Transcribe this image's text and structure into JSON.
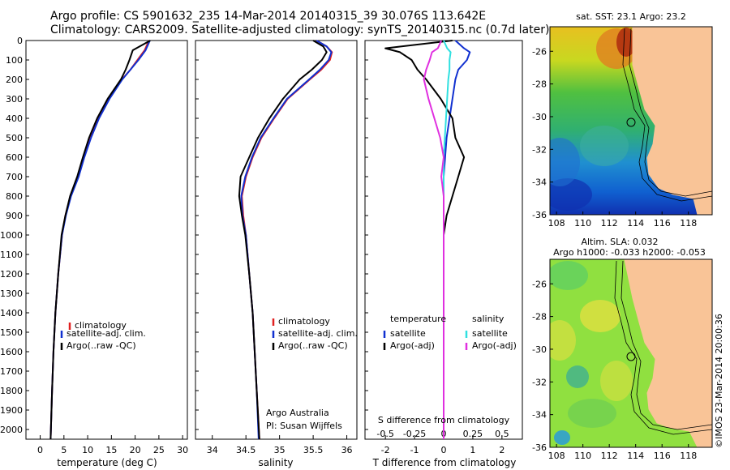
{
  "header": {
    "line1": "Argo profile: CS 5901632_235 14-Mar-2014 20140315_39 30.076S 113.642E",
    "line2": "Climatology: CARS2009. Satellite-adjusted climatology: synTS_20140315.nc (0.7d later)"
  },
  "footer": {
    "argo_australia": "Argo Australia",
    "pi": "PI: Susan Wijffels",
    "imos": "©IMOS 23-Mar-2014 20:00:36"
  },
  "colors": {
    "climatology": "#e02020",
    "satellite": "#1030d0",
    "argo": "#000000",
    "sat_salinity": "#30e0e0",
    "argo_adj_salinity": "#e030e0",
    "land": "#f9c497"
  },
  "chart_data": [
    {
      "type": "line",
      "xlabel": "temperature (deg C)",
      "ylabel": "",
      "xlim": [
        -3,
        31
      ],
      "ylim": [
        2050,
        0
      ],
      "xticks": [
        0,
        5,
        10,
        15,
        20,
        25,
        30
      ],
      "yticks": [
        0,
        100,
        200,
        300,
        400,
        500,
        600,
        700,
        800,
        900,
        1000,
        1100,
        1200,
        1300,
        1400,
        1500,
        1600,
        1700,
        1800,
        1900,
        2000
      ],
      "depth": [
        0,
        50,
        100,
        150,
        200,
        300,
        400,
        500,
        600,
        700,
        800,
        900,
        1000,
        1200,
        1400,
        1600,
        1800,
        2050
      ],
      "legend": [
        "climatology",
        "satellite-adj. clim.",
        "Argo(..raw -QC)"
      ],
      "series": [
        {
          "name": "climatology",
          "color": "#e02020",
          "values": [
            22.9,
            22.0,
            20.5,
            19.0,
            17.2,
            14.5,
            12.3,
            10.6,
            9.2,
            8.0,
            6.4,
            5.3,
            4.6,
            3.8,
            3.2,
            2.8,
            2.5,
            2.2
          ]
        },
        {
          "name": "satellite-adj. clim.",
          "color": "#1030d0",
          "values": [
            23.1,
            22.2,
            20.7,
            19.0,
            17.3,
            14.6,
            12.4,
            10.7,
            9.3,
            8.1,
            6.5,
            5.4,
            4.6,
            3.8,
            3.2,
            2.8,
            2.5,
            2.2
          ]
        },
        {
          "name": "Argo(..raw -QC)",
          "color": "#000000",
          "values": [
            23.2,
            19.5,
            18.8,
            18.0,
            17.0,
            14.2,
            12.0,
            10.3,
            9.0,
            7.8,
            6.3,
            5.3,
            4.5,
            3.8,
            3.2,
            2.8,
            2.5,
            2.2
          ]
        }
      ]
    },
    {
      "type": "line",
      "xlabel": "salinity",
      "ylabel": "",
      "xlim": [
        33.75,
        36.15
      ],
      "ylim": [
        2050,
        0
      ],
      "xticks": [
        34,
        34.5,
        35,
        35.5,
        36
      ],
      "depth": [
        0,
        30,
        60,
        100,
        150,
        200,
        300,
        400,
        500,
        600,
        700,
        800,
        900,
        1000,
        1200,
        1400,
        1600,
        1800,
        2050
      ],
      "legend": [
        "climatology",
        "satellite-adj. clim.",
        "Argo(..raw -QC)"
      ],
      "series": [
        {
          "name": "climatology",
          "color": "#e02020",
          "values": [
            35.55,
            35.7,
            35.78,
            35.75,
            35.62,
            35.45,
            35.12,
            34.92,
            34.73,
            34.6,
            34.5,
            34.44,
            34.46,
            34.5,
            34.55,
            34.6,
            34.63,
            34.66,
            34.7
          ]
        },
        {
          "name": "satellite-adj. clim.",
          "color": "#1030d0",
          "values": [
            35.55,
            35.7,
            35.77,
            35.73,
            35.6,
            35.44,
            35.11,
            34.91,
            34.72,
            34.59,
            34.49,
            34.43,
            34.45,
            34.5,
            34.55,
            34.6,
            34.63,
            34.66,
            34.69
          ]
        },
        {
          "name": "Argo(..raw -QC)",
          "color": "#000000",
          "values": [
            35.5,
            35.65,
            35.7,
            35.63,
            35.48,
            35.3,
            35.05,
            34.85,
            34.68,
            34.55,
            34.42,
            34.4,
            34.44,
            34.49,
            34.55,
            34.6,
            34.63,
            34.66,
            34.7
          ]
        }
      ]
    },
    {
      "type": "line",
      "xlabel": "T difference from climatology",
      "top_xlabel": "S difference from climatology",
      "ylabel": "",
      "xlim": [
        -2.7,
        2.7
      ],
      "ylim": [
        2050,
        0
      ],
      "xticks": [
        -2,
        -1,
        0,
        1,
        2
      ],
      "top_xticks": [
        "-0.5",
        "-0.25",
        "0",
        "0.25",
        "0.5"
      ],
      "depth": [
        0,
        40,
        60,
        100,
        150,
        200,
        300,
        400,
        500,
        600,
        700,
        800,
        900,
        1000,
        1200,
        1400,
        1600,
        1800,
        2050
      ],
      "legend_temperature_title": "temperature",
      "legend_salinity_title": "salinity",
      "legend": [
        "satellite",
        "Argo(-adj)",
        "satellite",
        "Argo(-adj)"
      ],
      "series": [
        {
          "name": "satellite",
          "color": "#1030d0",
          "values": [
            0.4,
            0.7,
            0.9,
            0.8,
            0.5,
            0.4,
            0.3,
            0.2,
            0.1,
            0.05,
            0.0,
            0.0,
            0.0,
            0.0,
            0.0,
            0.0,
            0.0,
            0.0,
            0.0
          ]
        },
        {
          "name": "Argo(-adj)",
          "color": "#000000",
          "values": [
            0.3,
            -2.0,
            -1.5,
            -1.1,
            -0.9,
            -0.6,
            -0.1,
            0.3,
            0.4,
            0.7,
            0.5,
            0.3,
            0.1,
            0.0,
            0.0,
            0.0,
            0.0,
            0.0,
            0.0
          ]
        },
        {
          "name": "satellite",
          "color": "#30e0e0",
          "values": [
            0.0,
            0.03,
            0.06,
            0.05,
            0.05,
            0.04,
            0.03,
            0.02,
            0.01,
            0.0,
            0.0,
            0.0,
            0.0,
            0.0,
            0.0,
            0.0,
            0.0,
            0.0,
            0.0
          ]
        },
        {
          "name": "Argo(-adj)",
          "color": "#e030e0",
          "values": [
            -0.02,
            -0.05,
            -0.1,
            -0.12,
            -0.15,
            -0.17,
            -0.13,
            -0.08,
            -0.03,
            0.0,
            -0.02,
            0.0,
            0.0,
            0.0,
            0.0,
            0.0,
            0.0,
            0.0,
            0.0
          ]
        }
      ]
    },
    {
      "type": "heatmap",
      "title": "sat. SST: 23.1  Argo: 23.2",
      "xlim": [
        107.5,
        119.8
      ],
      "ylim": [
        -36,
        -24.5
      ],
      "xticks": [
        108,
        110,
        112,
        114,
        116,
        118
      ],
      "yticks": [
        -26,
        -28,
        -30,
        -32,
        -34,
        -36
      ]
    },
    {
      "type": "heatmap",
      "title_line1": "Altim. SLA: 0.032",
      "title_line2": "Argo h1000: -0.033 h2000: -0.053",
      "xlim": [
        107.5,
        119.8
      ],
      "ylim": [
        -36,
        -24.5
      ],
      "xticks": [
        108,
        110,
        112,
        114,
        116,
        118
      ],
      "yticks": [
        -26,
        -28,
        -30,
        -32,
        -34,
        -36
      ]
    }
  ]
}
